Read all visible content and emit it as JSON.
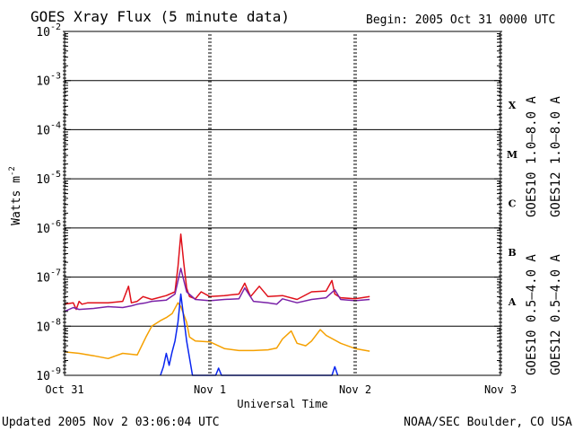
{
  "chart_data": {
    "type": "line",
    "title": "GOES Xray Flux (5 minute data)",
    "begin": "Begin:  2005 Oct 31 0000 UTC",
    "xlabel": "Universal Time",
    "ylabel": "Watts m",
    "ylabel_exp": "-2",
    "x_ticks": [
      {
        "label": "Oct 31",
        "day": 0
      },
      {
        "label": "Nov 1",
        "day": 1
      },
      {
        "label": "Nov 2",
        "day": 2
      },
      {
        "label": "Nov 3",
        "day": 3
      }
    ],
    "xlim_days": [
      0,
      3
    ],
    "y_scale": "log",
    "ylim": [
      1e-09,
      0.01
    ],
    "y_ticks": [
      {
        "base": "10",
        "exp": "-9",
        "value": 1e-09
      },
      {
        "base": "10",
        "exp": "-8",
        "value": 1e-08
      },
      {
        "base": "10",
        "exp": "-7",
        "value": 1e-07
      },
      {
        "base": "10",
        "exp": "-6",
        "value": 1e-06
      },
      {
        "base": "10",
        "exp": "-5",
        "value": 1e-05
      },
      {
        "base": "10",
        "exp": "-4",
        "value": 0.0001
      },
      {
        "base": "10",
        "exp": "-3",
        "value": 0.001
      },
      {
        "base": "10",
        "exp": "-2",
        "value": 0.01
      }
    ],
    "flare_classes": [
      {
        "label": "A",
        "value": 1e-08
      },
      {
        "label": "B",
        "value": 1e-07
      },
      {
        "label": "C",
        "value": 1e-06
      },
      {
        "label": "M",
        "value": 1e-05
      },
      {
        "label": "X",
        "value": 0.0001
      }
    ],
    "grid": "horizontal lines at each decade 1e-8 to 1e-3",
    "legend_right": [
      {
        "name": "GOES10 1.0–8.0 A",
        "color": "#7a22a8"
      },
      {
        "name": "GOES12 1.0–8.0 A",
        "color": "#e0101a"
      },
      {
        "name": "GOES10 0.5–4.0 A",
        "color": "#f5a000"
      },
      {
        "name": "GOES12 0.5–4.0 A",
        "color": "#0a26f0"
      }
    ],
    "series": [
      {
        "name": "GOES12 1.0–8.0 A",
        "color": "#e0101a",
        "x": [
          0.0,
          0.06,
          0.08,
          0.1,
          0.12,
          0.16,
          0.2,
          0.3,
          0.4,
          0.44,
          0.46,
          0.5,
          0.54,
          0.6,
          0.7,
          0.76,
          0.78,
          0.8,
          0.82,
          0.84,
          0.86,
          0.88,
          0.9,
          0.94,
          1.0,
          1.1,
          1.2,
          1.24,
          1.28,
          1.34,
          1.4,
          1.5,
          1.6,
          1.7,
          1.8,
          1.84,
          1.86,
          1.9,
          2.0,
          2.1
        ],
        "y": [
          2.8e-08,
          3e-08,
          2.2e-08,
          3.2e-08,
          2.8e-08,
          3e-08,
          3e-08,
          3e-08,
          3.2e-08,
          6.5e-08,
          3e-08,
          3.2e-08,
          4e-08,
          3.5e-08,
          4.2e-08,
          5e-08,
          1.6e-07,
          7.5e-07,
          2e-07,
          6e-08,
          4e-08,
          3.8e-08,
          3.6e-08,
          5e-08,
          4e-08,
          4.2e-08,
          4.5e-08,
          7.5e-08,
          4e-08,
          6.5e-08,
          4e-08,
          4.2e-08,
          3.5e-08,
          5e-08,
          5.2e-08,
          8.5e-08,
          4.5e-08,
          3.8e-08,
          3.6e-08,
          4e-08
        ]
      },
      {
        "name": "GOES10 1.0–8.0 A",
        "color": "#7a22a8",
        "x": [
          0.0,
          0.06,
          0.1,
          0.2,
          0.3,
          0.4,
          0.46,
          0.5,
          0.56,
          0.6,
          0.7,
          0.76,
          0.8,
          0.84,
          0.9,
          1.0,
          1.1,
          1.2,
          1.24,
          1.3,
          1.4,
          1.46,
          1.5,
          1.6,
          1.7,
          1.8,
          1.86,
          1.9,
          2.0,
          2.1
        ],
        "y": [
          2e-08,
          2.4e-08,
          2.2e-08,
          2.3e-08,
          2.5e-08,
          2.4e-08,
          2.6e-08,
          2.8e-08,
          3e-08,
          3.2e-08,
          3.4e-08,
          4.5e-08,
          1.5e-07,
          5e-08,
          3.5e-08,
          3.3e-08,
          3.5e-08,
          3.6e-08,
          6e-08,
          3.2e-08,
          3e-08,
          2.8e-08,
          3.6e-08,
          3e-08,
          3.5e-08,
          3.8e-08,
          5.5e-08,
          3.5e-08,
          3.3e-08,
          3.5e-08
        ]
      },
      {
        "name": "GOES10 0.5–4.0 A",
        "color": "#f5a000",
        "x": [
          0.0,
          0.1,
          0.2,
          0.3,
          0.4,
          0.5,
          0.56,
          0.6,
          0.66,
          0.7,
          0.74,
          0.78,
          0.8,
          0.84,
          0.86,
          0.9,
          1.0,
          1.1,
          1.2,
          1.3,
          1.4,
          1.46,
          1.5,
          1.56,
          1.6,
          1.66,
          1.7,
          1.76,
          1.8,
          1.9,
          2.0,
          2.1
        ],
        "y": [
          3e-09,
          2.8e-09,
          2.5e-09,
          2.2e-09,
          2.8e-09,
          2.6e-09,
          6e-09,
          1e-08,
          1.3e-08,
          1.5e-08,
          1.8e-08,
          3e-08,
          2.5e-08,
          1.2e-08,
          6e-09,
          5e-09,
          4.8e-09,
          3.5e-09,
          3.2e-09,
          3.2e-09,
          3.3e-09,
          3.6e-09,
          5.5e-09,
          8e-09,
          4.5e-09,
          4e-09,
          5e-09,
          8.5e-09,
          6.5e-09,
          4.5e-09,
          3.5e-09,
          3.1e-09
        ]
      },
      {
        "name": "GOES12 0.5–4.0 A",
        "color": "#0a26f0",
        "x": [
          0.66,
          0.68,
          0.7,
          0.72,
          0.74,
          0.76,
          0.78,
          0.8,
          0.84,
          0.88,
          1.04,
          1.06,
          1.08,
          1.5,
          1.84,
          1.86,
          1.88
        ],
        "y": [
          1e-09,
          1.5e-09,
          2.8e-09,
          1.6e-09,
          3e-09,
          5e-09,
          1.2e-08,
          4.5e-08,
          5e-09,
          1e-09,
          1e-09,
          1.4e-09,
          1e-09,
          1e-09,
          1e-09,
          1.5e-09,
          1e-09
        ]
      }
    ]
  },
  "footer": {
    "updated": "Updated 2005 Nov  2 03:06:04 UTC",
    "source": "NOAA/SEC Boulder, CO USA"
  }
}
